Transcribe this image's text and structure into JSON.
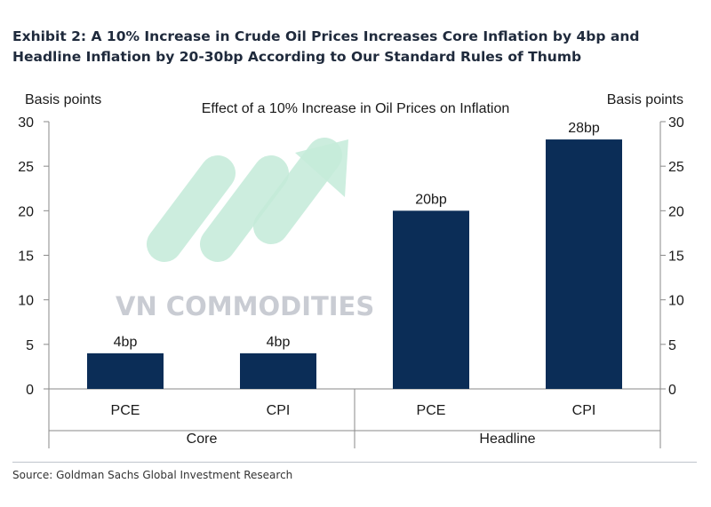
{
  "title": "Exhibit 2: A 10% Increase in Crude Oil Prices Increases Core Inflation by 4bp and Headline Inflation by 20-30bp According to Our Standard Rules of Thumb",
  "source": "Source: Goldman Sachs Global Investment Research",
  "watermark": {
    "text": "VN COMMODITIES"
  },
  "colors": {
    "bar": "#0b2d57",
    "axis": "#8a8a8a",
    "watermark_text": "#c9ccd3",
    "watermark_arrow": "#c4ebd9"
  },
  "chart_data": {
    "type": "bar",
    "title": "Effect of a 10% Increase in Oil Prices on Inflation",
    "ylabel_left": "Basis points",
    "ylabel_right": "Basis points",
    "ylim": [
      0,
      30
    ],
    "yticks": [
      0,
      5,
      10,
      15,
      20,
      25,
      30
    ],
    "groups": [
      {
        "name": "Core",
        "categories": [
          "PCE",
          "CPI"
        ]
      },
      {
        "name": "Headline",
        "categories": [
          "PCE",
          "CPI"
        ]
      }
    ],
    "categories": [
      "PCE",
      "CPI",
      "PCE",
      "CPI"
    ],
    "values": [
      4,
      4,
      20,
      28
    ],
    "data_labels": [
      "4bp",
      "4bp",
      "20bp",
      "28bp"
    ]
  }
}
